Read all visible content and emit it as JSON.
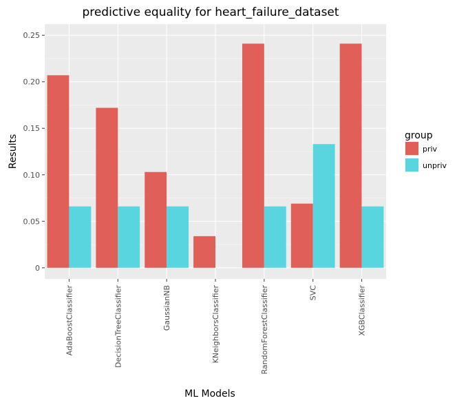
{
  "chart_data": {
    "type": "bar",
    "title": "predictive equality for heart_failure_dataset",
    "xlabel": "ML Models",
    "ylabel": "Results",
    "categories": [
      "AdaBoostClassifier",
      "DecisionTreeClassifier",
      "GaussianNB",
      "KNeighborsClassifier",
      "RandomForestClassifier",
      "SVC",
      "XGBClassifier"
    ],
    "series": [
      {
        "name": "priv",
        "color": "#e05f59",
        "values": [
          0.207,
          0.172,
          0.103,
          0.034,
          0.241,
          0.069,
          0.241
        ]
      },
      {
        "name": "unpriv",
        "color": "#58d5de",
        "values": [
          0.066,
          0.066,
          0.066,
          0.0,
          0.066,
          0.133,
          0.066
        ]
      }
    ],
    "yticks": [
      0,
      0.05,
      0.1,
      0.15,
      0.2,
      0.25
    ],
    "ytick_labels": [
      "0",
      "0.05",
      "0.10",
      "0.15",
      "0.20",
      "0.25"
    ],
    "ylim": [
      -0.012,
      0.262
    ],
    "grid": true,
    "legend": {
      "title": "group",
      "position": "right"
    }
  }
}
